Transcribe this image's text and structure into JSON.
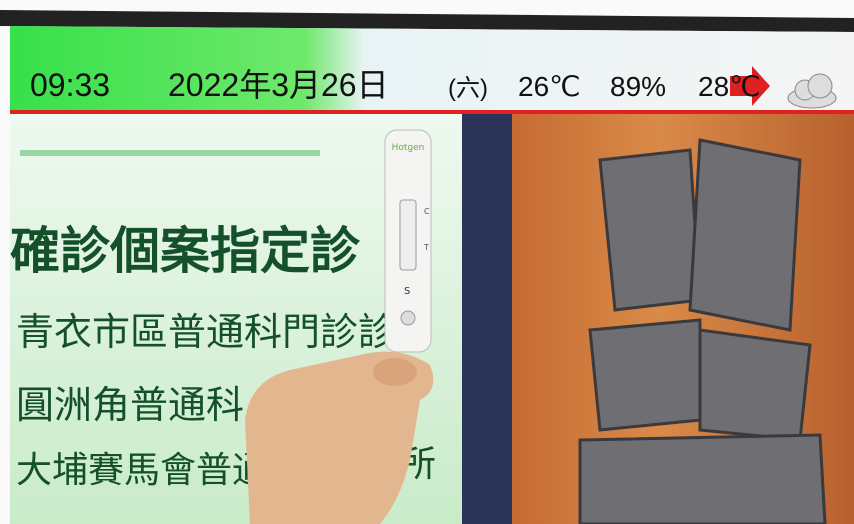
{
  "ticker": {
    "time": "09:33",
    "date": "2022年3月26日",
    "weekday": "(六)",
    "temperature": "26℃",
    "humidity": "89%",
    "forecast_temperature": "28℃"
  },
  "screen": {
    "heading": "確診個案指定診",
    "lines": [
      "青衣市區普通科門診診",
      "圓洲角普通科",
      "大埔賽馬會普通"
    ],
    "line_end": "所"
  },
  "test_kit": {
    "brand": "Hotgen",
    "markings": [
      "C",
      "T",
      "S"
    ]
  }
}
